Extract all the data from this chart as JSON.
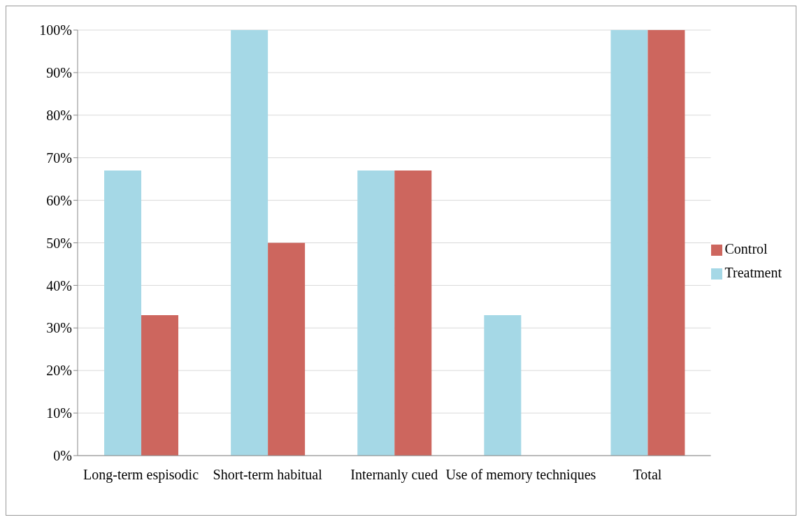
{
  "chart_data": {
    "type": "bar",
    "categories": [
      "Long-term espisodic",
      "Short-term habitual",
      "Internanly cued",
      "Use of memory techniques",
      "Total"
    ],
    "series": [
      {
        "name": "Treatment",
        "color": "#a5d8e6",
        "values": [
          67,
          100,
          67,
          33,
          100
        ]
      },
      {
        "name": "Control",
        "color": "#cd665e",
        "values": [
          33,
          50,
          67,
          0,
          100
        ]
      }
    ],
    "ylim": [
      0,
      100
    ],
    "yticks": [
      {
        "value": 0,
        "label": "0%"
      },
      {
        "value": 10,
        "label": "10%"
      },
      {
        "value": 20,
        "label": "20%"
      },
      {
        "value": 30,
        "label": "30%"
      },
      {
        "value": 40,
        "label": "40%"
      },
      {
        "value": 50,
        "label": "50%"
      },
      {
        "value": 60,
        "label": "60%"
      },
      {
        "value": 70,
        "label": "70%"
      },
      {
        "value": 80,
        "label": "80%"
      },
      {
        "value": 90,
        "label": "90%"
      },
      {
        "value": 100,
        "label": "100%"
      }
    ],
    "grid": "y",
    "legend": "right"
  }
}
